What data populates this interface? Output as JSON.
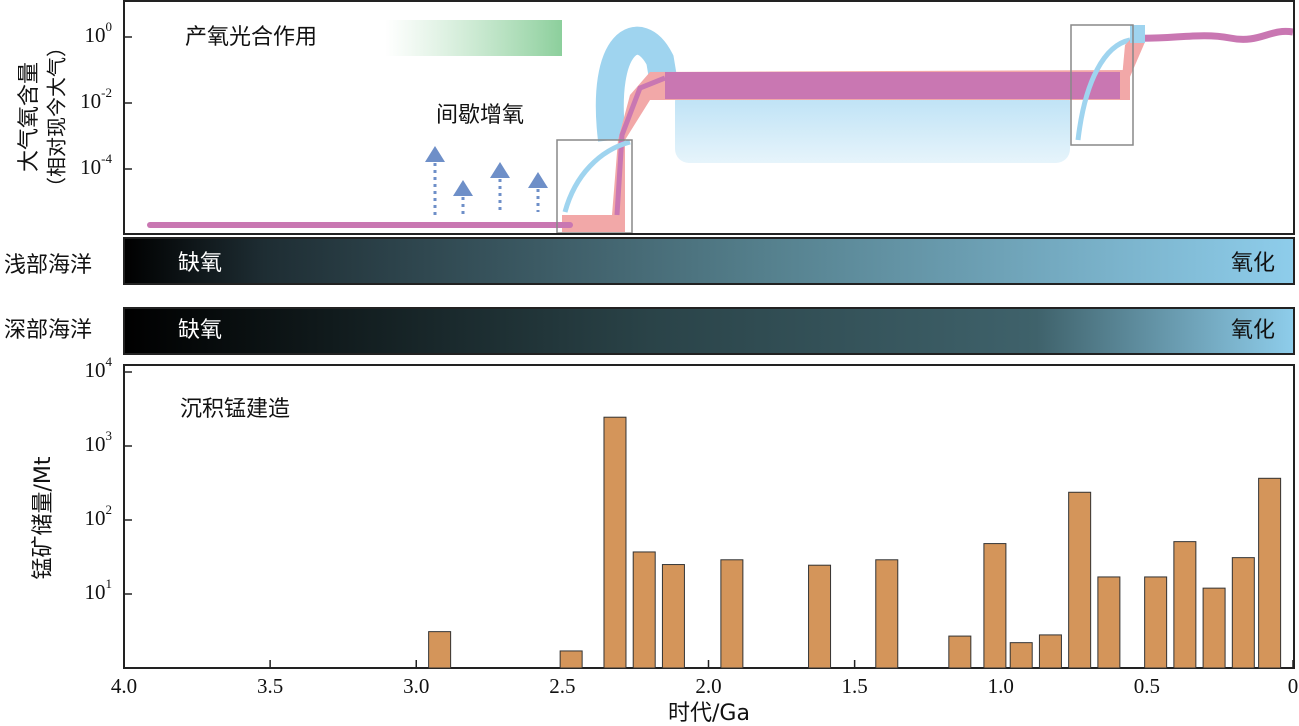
{
  "atmosphere": {
    "ylabel": [
      "大气氧含量",
      "（相对现今大气）"
    ],
    "ylim": [
      1e-06,
      10
    ],
    "yticks": [
      {
        "value": 1,
        "label": "10",
        "exponent": "0"
      },
      {
        "value": 0.01,
        "label": "10",
        "exponent": "-2"
      },
      {
        "value": 0.0001,
        "label": "10",
        "exponent": "-4"
      }
    ],
    "annotations": [
      "产氧光合作用",
      "间歇增氧"
    ]
  },
  "oceans": [
    {
      "name": "浅部海洋",
      "left": "缺氧",
      "right": "氧化"
    },
    {
      "name": "深部海洋",
      "left": "缺氧",
      "right": "氧化"
    }
  ],
  "chart_data": {
    "type": "bar",
    "title": "沉积锰建造",
    "xlabel": "时代/Ga",
    "ylabel": "锰矿储量/Mt",
    "x": [
      2.92,
      2.47,
      2.32,
      2.22,
      2.12,
      1.92,
      1.62,
      1.39,
      1.14,
      1.02,
      0.93,
      0.83,
      0.73,
      0.63,
      0.47,
      0.37,
      0.27,
      0.17,
      0.08
    ],
    "values": [
      3.1,
      1.7,
      2450,
      37,
      25,
      29,
      24.5,
      29,
      2.7,
      48,
      2.2,
      2.8,
      237,
      17,
      17,
      51,
      12,
      31,
      366
    ],
    "color": "#d4955a",
    "xlim": [
      4.0,
      0
    ],
    "xticks": [
      {
        "value": 4,
        "label": "4.0"
      },
      3.5,
      {
        "value": 3,
        "label": "3.0"
      },
      2.5,
      {
        "value": 2,
        "label": "2.0"
      },
      1.5,
      {
        "value": 1,
        "label": "1.0"
      },
      0.5,
      0
    ],
    "ylim": [
      1,
      10000
    ],
    "log_scale": true,
    "yticks": [
      {
        "value": 10,
        "label": "10",
        "exponent": "1"
      },
      {
        "value": 100,
        "label": "10",
        "exponent": "2"
      },
      {
        "value": 1000,
        "label": "10",
        "exponent": "3"
      },
      {
        "value": 10000,
        "label": "10",
        "exponent": "4"
      }
    ]
  }
}
